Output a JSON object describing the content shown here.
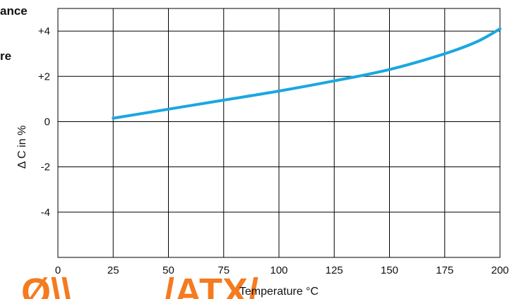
{
  "side_text": {
    "line1": "ance",
    "line2": "re"
  },
  "watermark": {
    "left_fragment": "Ø\\\\",
    "right_fragment": "/ATX/"
  },
  "colors": {
    "curve": "#1aa7e0",
    "grid": "#000000",
    "watermark": "#f47b20"
  },
  "chart_data": {
    "type": "line",
    "title": "",
    "xlabel": "Temperature °C",
    "ylabel": "Δ C in %",
    "xlim": [
      0,
      200
    ],
    "ylim": [
      -6,
      5
    ],
    "x_ticks": [
      0,
      25,
      50,
      75,
      100,
      125,
      150,
      175,
      200
    ],
    "x_tick_labels": [
      "0",
      "25",
      "50",
      "75",
      "100",
      "125",
      "150",
      "175",
      "200"
    ],
    "y_ticks": [
      4,
      2,
      0,
      -2,
      -4
    ],
    "y_tick_labels": [
      "+4",
      "+2",
      "0",
      "-2",
      "-4"
    ],
    "grid": true,
    "series": [
      {
        "x": [
          25,
          50,
          75,
          100,
          125,
          150,
          175,
          190,
          200
        ],
        "y": [
          0.15,
          0.55,
          0.95,
          1.35,
          1.8,
          2.3,
          3.0,
          3.55,
          4.1
        ]
      }
    ]
  }
}
